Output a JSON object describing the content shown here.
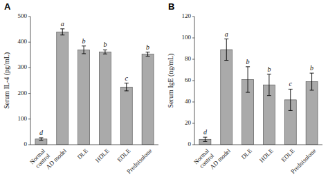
{
  "chart_data": [
    {
      "type": "bar",
      "title": "A",
      "categories": [
        "Normal\ncontrol",
        "AD model",
        "DLE",
        "HDLE",
        "EDLE",
        "Prednisolone"
      ],
      "values": [
        22,
        440,
        370,
        362,
        225,
        353
      ],
      "errors": [
        5,
        12,
        15,
        8,
        15,
        8
      ],
      "annotations": [
        "d",
        "a",
        "b",
        "b",
        "c",
        "b"
      ],
      "ylabel": "Serum IL-4 (pg/mL)",
      "ylim": [
        0,
        500
      ],
      "yticks": [
        0,
        100,
        200,
        300,
        400,
        500
      ],
      "color": "#aaaaaa"
    },
    {
      "type": "bar",
      "title": "B",
      "categories": [
        "Normal\ncontrol",
        "AD model",
        "DLE",
        "HDLE",
        "EDLE",
        "Prednisolone"
      ],
      "values": [
        5,
        89,
        61,
        56,
        42,
        59
      ],
      "errors": [
        2,
        10,
        12,
        10,
        10,
        8
      ],
      "annotations": [
        "d",
        "a",
        "b",
        "b",
        "c",
        "b"
      ],
      "ylabel": "Serum IgE (ng/mL)",
      "ylim": [
        0,
        120
      ],
      "yticks": [
        0,
        20,
        40,
        60,
        80,
        100,
        120
      ],
      "color": "#aaaaaa"
    }
  ]
}
